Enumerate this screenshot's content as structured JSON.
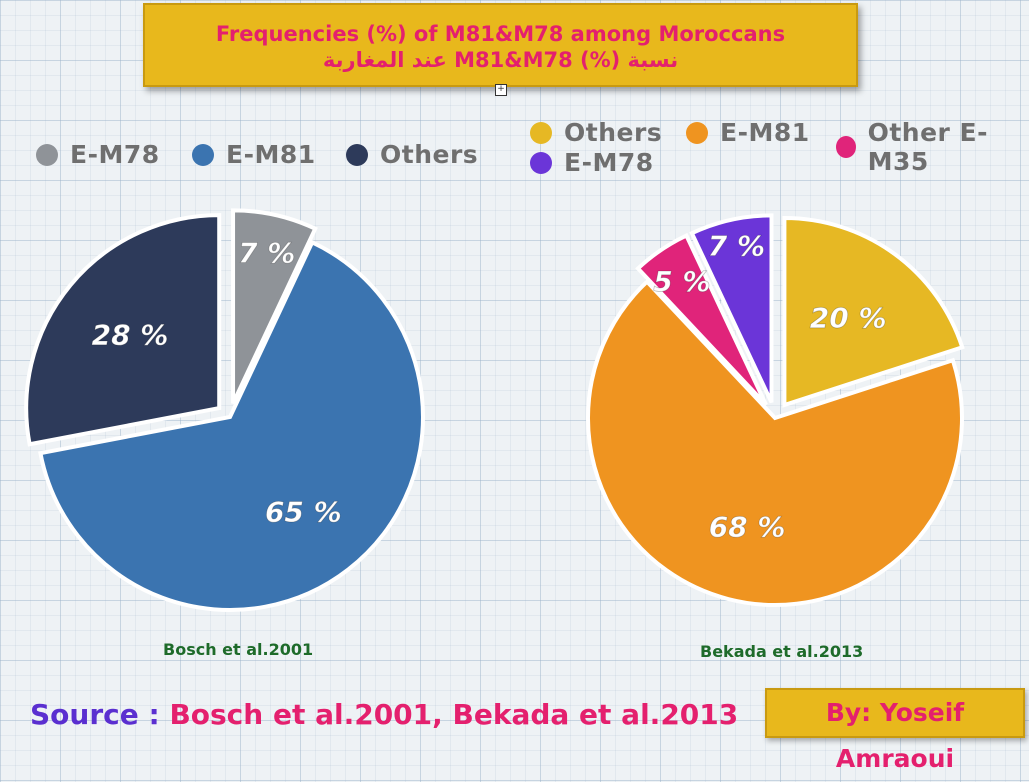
{
  "title": {
    "line1": "Frequencies (%) of M81&M78 among Moroccans",
    "line2": "نسبة (%) M81&M78 عند المغاربة"
  },
  "source": {
    "label": "Source : ",
    "refs": "Bosch et al.2001, Bekada et al.2013"
  },
  "author": "By: Yoseif Amraoui",
  "chart_data": [
    {
      "type": "pie",
      "title": "Bosch et al.2001",
      "legend": [
        "E-M78",
        "E-M81",
        "Others"
      ],
      "slices": [
        {
          "label": "E-M78",
          "value": 7,
          "text": "7 %",
          "color": "#8f9398",
          "exploded": true
        },
        {
          "label": "E-M81",
          "value": 65,
          "text": "65 %",
          "color": "#3b74b0",
          "exploded": false
        },
        {
          "label": "Others",
          "value": 28,
          "text": "28 %",
          "color": "#2d3a5a",
          "exploded": true
        }
      ]
    },
    {
      "type": "pie",
      "title": "Bekada et al.2013",
      "legend": [
        "Others",
        "E-M81",
        "Other E-M35",
        "E-M78"
      ],
      "slices": [
        {
          "label": "Others",
          "value": 20,
          "text": "20 %",
          "color": "#e6b824",
          "exploded": true
        },
        {
          "label": "E-M81",
          "value": 68,
          "text": "68 %",
          "color": "#ef9420",
          "exploded": false
        },
        {
          "label": "Other E-M35",
          "value": 5,
          "text": "5 %",
          "color": "#e0247a",
          "exploded": true
        },
        {
          "label": "E-M78",
          "value": 7,
          "text": "7 %",
          "color": "#6b35d8",
          "exploded": true
        }
      ]
    }
  ]
}
